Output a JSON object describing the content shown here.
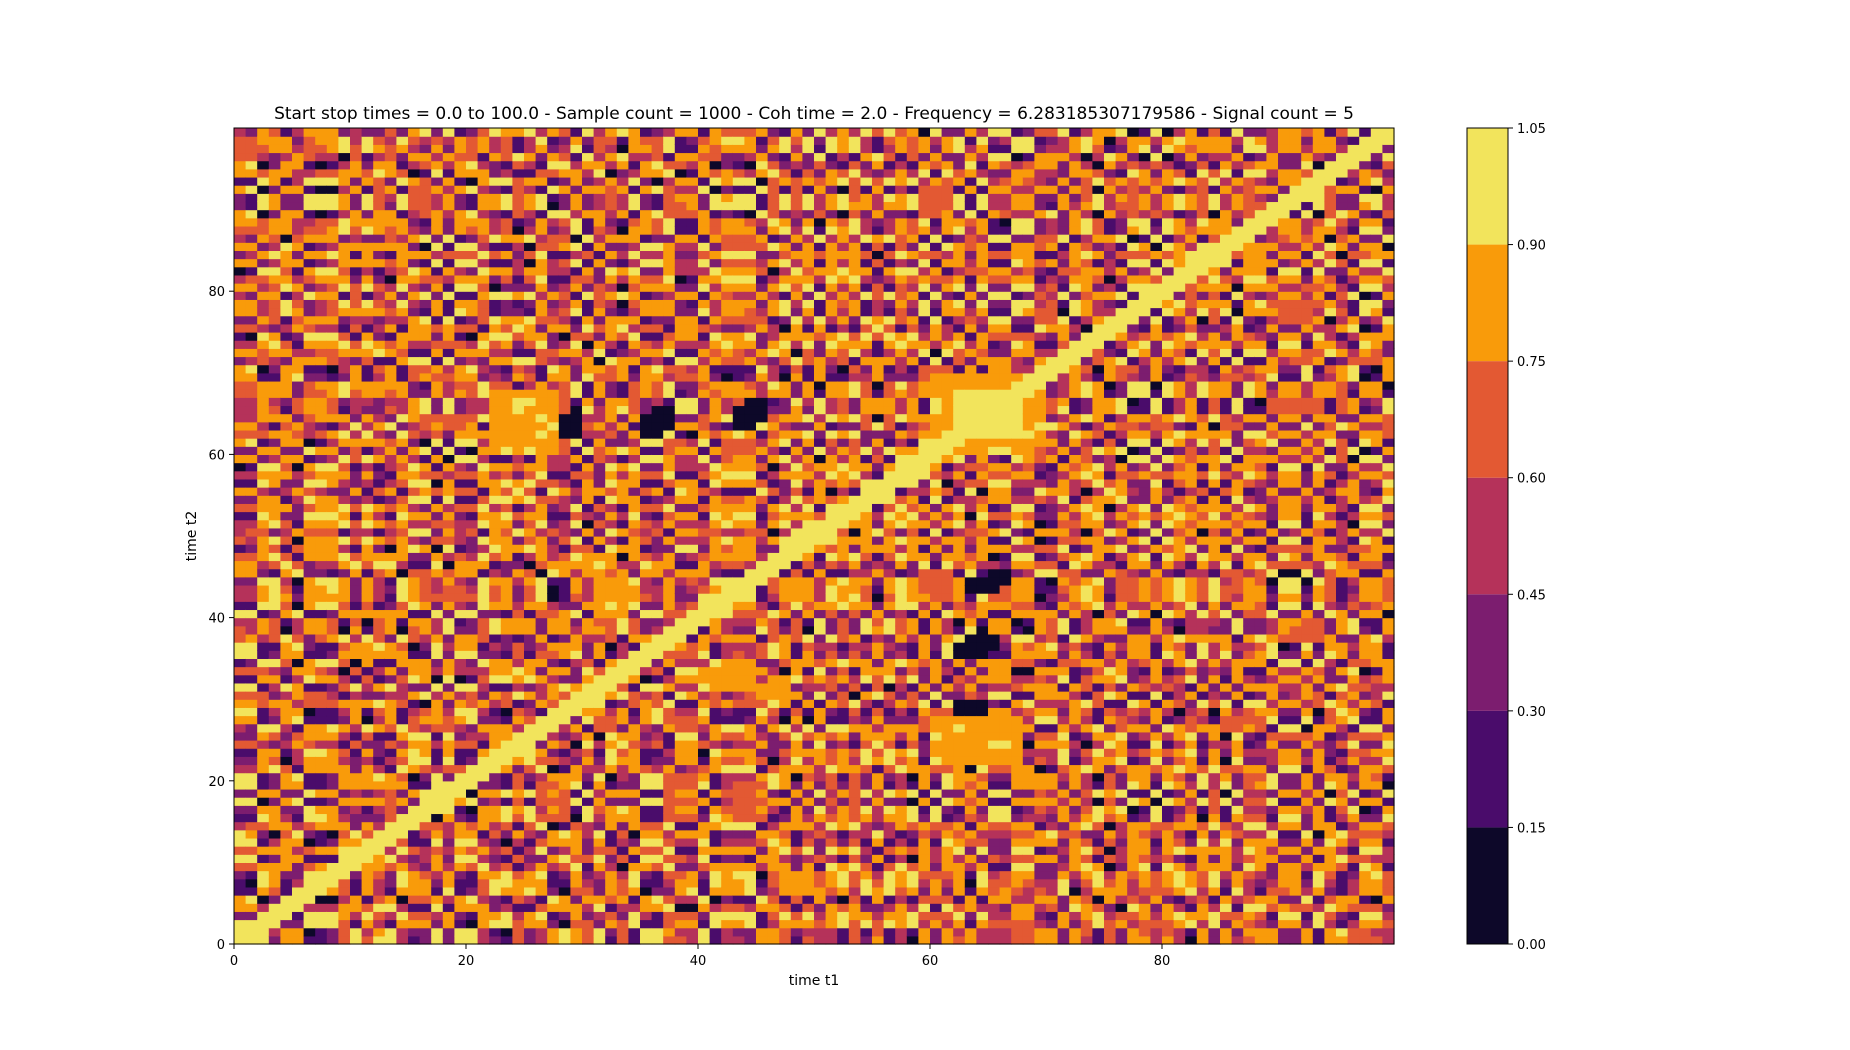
{
  "chart_data": {
    "type": "heatmap",
    "title": "Start stop times = 0.0 to 100.0 - Sample count = 1000 - Coh time = 2.0 - Frequency = 6.283185307179586 - Signal count = 5",
    "xlabel": "time t1",
    "ylabel": "time t2",
    "xlim": [
      0,
      100
    ],
    "ylim": [
      0,
      100
    ],
    "xticks": [
      0,
      20,
      40,
      60,
      80
    ],
    "yticks": [
      0,
      20,
      40,
      60,
      80
    ],
    "grid": false,
    "colormap": "inferno",
    "colorbar": {
      "levels": [
        0.0,
        0.15,
        0.3,
        0.45,
        0.6,
        0.75,
        0.9,
        1.05
      ],
      "tick_labels": [
        "0.00",
        "0.15",
        "0.30",
        "0.45",
        "0.60",
        "0.75",
        "0.90",
        "1.05"
      ],
      "colors": [
        "#0d0829",
        "#4a0c6b",
        "#7c1d6f",
        "#b5325a",
        "#e35933",
        "#f99b0a",
        "#f2e45c"
      ]
    },
    "diagonal_value": 1.0,
    "high_coherence_blocks": [
      {
        "t1": [
          62,
          68
        ],
        "t2": [
          62,
          68
        ],
        "level": 0.97
      },
      {
        "t1": [
          57,
          60
        ],
        "t2": [
          57,
          60
        ],
        "level": 0.97
      },
      {
        "t1": [
          40,
          43
        ],
        "t2": [
          40,
          43
        ],
        "level": 0.97
      },
      {
        "t1": [
          35,
          37
        ],
        "t2": [
          35,
          37
        ],
        "level": 0.97
      },
      {
        "t1": [
          17,
          19
        ],
        "t2": [
          17,
          19
        ],
        "level": 0.97
      },
      {
        "t1": [
          0,
          3
        ],
        "t2": [
          0,
          3
        ],
        "level": 0.97
      },
      {
        "t1": [
          22,
          28
        ],
        "t2": [
          60,
          68
        ],
        "level": 0.85
      },
      {
        "t1": [
          61,
          69
        ],
        "t2": [
          60,
          70
        ],
        "level": 0.85
      },
      {
        "t1": [
          61,
          68
        ],
        "t2": [
          22,
          28
        ],
        "level": 0.8
      },
      {
        "t1": [
          31,
          34
        ],
        "t2": [
          40,
          45
        ],
        "level": 0.85
      },
      {
        "t1": [
          40,
          45
        ],
        "t2": [
          31,
          34
        ],
        "level": 0.85
      },
      {
        "t1": [
          46,
          48
        ],
        "t2": [
          30,
          33
        ],
        "level": 0.8
      }
    ],
    "low_coherence_blocks": [
      {
        "t1": [
          35,
          37
        ],
        "t2": [
          62,
          65
        ],
        "level": 0.05
      },
      {
        "t1": [
          28,
          30
        ],
        "t2": [
          62,
          65
        ],
        "level": 0.1
      },
      {
        "t1": [
          63,
          66
        ],
        "t2": [
          36,
          38
        ],
        "level": 0.05
      },
      {
        "t1": [
          63,
          66
        ],
        "t2": [
          43,
          45
        ],
        "level": 0.1
      },
      {
        "t1": [
          44,
          46
        ],
        "t2": [
          65,
          67
        ],
        "level": 0.05
      }
    ]
  }
}
